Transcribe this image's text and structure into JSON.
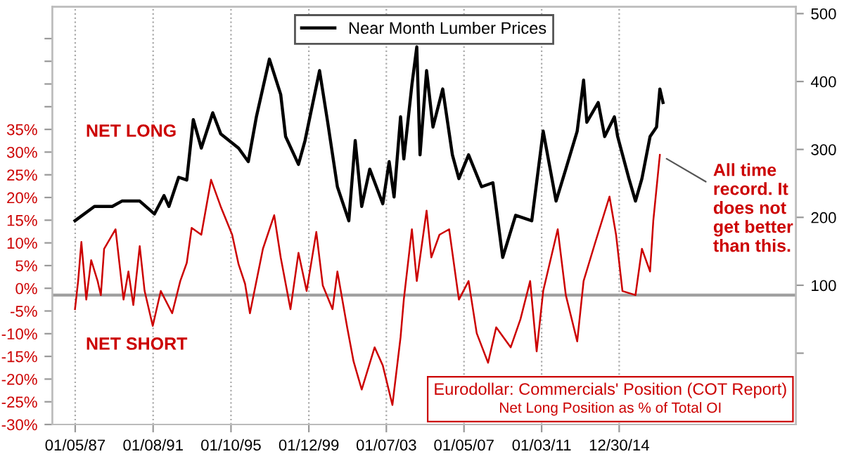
{
  "chart_data": {
    "type": "line",
    "title": "Eurodollar: Commercials' Position (COT Report)",
    "subtitle": "Net Long Position as % of Total OI",
    "series": [
      {
        "name": "Near Month Lumber Prices",
        "color": "#000000",
        "axis": "y2",
        "x": [
          "1987-01",
          "1988-01",
          "1988-12",
          "1989-06",
          "1990-05",
          "1991-02",
          "1991-08",
          "1991-11",
          "1992-05",
          "1992-10",
          "1993-02",
          "1993-07",
          "1994-02",
          "1994-07",
          "1995-06",
          "1995-12",
          "1996-05",
          "1997-01",
          "1997-08",
          "1997-11",
          "1998-07",
          "1998-11",
          "1999-08",
          "2000-01",
          "2000-07",
          "2001-02",
          "2001-06",
          "2001-10",
          "2002-03",
          "2002-11",
          "2003-03",
          "2003-06",
          "2003-10",
          "2003-12",
          "2004-05",
          "2004-08",
          "2004-10",
          "2005-02",
          "2005-06",
          "2005-12",
          "2006-06",
          "2006-10",
          "2007-04",
          "2007-12",
          "2008-07",
          "2009-01",
          "2009-09",
          "2010-07",
          "2011-02",
          "2011-10",
          "2012-04",
          "2012-11",
          "2013-03",
          "2013-05",
          "2013-12",
          "2014-04",
          "2014-10",
          "2014-12",
          "2015-07",
          "2015-11",
          "2016-03",
          "2016-08",
          "2016-12",
          "2017-02",
          "2017-04"
        ],
        "values": [
          195,
          216,
          216,
          224,
          224,
          205,
          232,
          216,
          259,
          255,
          344,
          302,
          354,
          323,
          302,
          282,
          348,
          433,
          381,
          319,
          278,
          313,
          416,
          340,
          245,
          195,
          313,
          216,
          271,
          220,
          282,
          230,
          348,
          286,
          395,
          451,
          292,
          416,
          333,
          389,
          292,
          257,
          292,
          245,
          251,
          141,
          203,
          195,
          327,
          224,
          271,
          327,
          402,
          340,
          369,
          319,
          348,
          319,
          257,
          224,
          257,
          319,
          333,
          389,
          369
        ]
      },
      {
        "color": "#cc0000",
        "axis": "y",
        "x": [
          "1987-01",
          "1987-03",
          "1987-05",
          "1987-08",
          "1987-11",
          "1988-03",
          "1988-05",
          "1988-07",
          "1989-02",
          "1989-07",
          "1989-10",
          "1990-01",
          "1990-05",
          "1990-08",
          "1991-01",
          "1991-06",
          "1992-01",
          "1992-06",
          "1992-10",
          "1993-01",
          "1993-07",
          "1994-01",
          "1994-07",
          "1995-02",
          "1995-06",
          "1995-10",
          "1996-01",
          "1996-09",
          "1997-04",
          "1997-08",
          "1998-02",
          "1998-07",
          "1998-12",
          "1999-06",
          "1999-10",
          "2000-04",
          "2000-07",
          "2001-01",
          "2001-05",
          "2001-10",
          "2002-06",
          "2002-11",
          "2003-05",
          "2003-10",
          "2003-12",
          "2004-05",
          "2004-08",
          "2005-02",
          "2005-05",
          "2005-10",
          "2006-04",
          "2006-10",
          "2007-04",
          "2007-09",
          "2008-04",
          "2008-09",
          "2009-06",
          "2009-12",
          "2010-06",
          "2010-10",
          "2011-02",
          "2011-11",
          "2012-04",
          "2012-11",
          "2013-03",
          "2013-10",
          "2014-07",
          "2014-11",
          "2015-03",
          "2015-11",
          "2016-03",
          "2016-08",
          "2016-10",
          "2017-02"
        ],
        "values": [
          -4.6,
          1.6,
          10.2,
          -2.5,
          6.2,
          1.6,
          -1.5,
          8.7,
          13.0,
          -2.5,
          3.7,
          -3.7,
          9.3,
          -0.6,
          -8.3,
          -0.6,
          -5.5,
          1.6,
          5.6,
          13.3,
          11.8,
          23.9,
          18.0,
          11.8,
          5.3,
          1.0,
          -5.5,
          8.7,
          16.1,
          6.8,
          -4.6,
          7.8,
          -0.6,
          12.4,
          0.6,
          -4.6,
          3.7,
          -8.6,
          -16.1,
          -22.3,
          -13.0,
          -17.0,
          -25.7,
          -10.8,
          -2.5,
          13.0,
          1.6,
          17.1,
          6.8,
          11.8,
          13.0,
          -2.5,
          1.6,
          -9.9,
          -16.4,
          -8.6,
          -13.0,
          -6.8,
          1.6,
          -13.9,
          -0.6,
          13.0,
          -1.5,
          -11.7,
          1.6,
          9.9,
          20.2,
          11.8,
          -0.6,
          -1.5,
          8.7,
          3.7,
          14.9,
          29.4
        ]
      }
    ],
    "xlim": [
      "1985-11-01",
      "2024-02-01"
    ],
    "xticks": [
      {
        "value": "1987-01-05",
        "label": "01/05/87"
      },
      {
        "value": "1991-01-08",
        "label": "01/08/91"
      },
      {
        "value": "1995-01-10",
        "label": "01/10/95"
      },
      {
        "value": "1999-01-12",
        "label": "01/12/99"
      },
      {
        "value": "2003-01-07",
        "label": "01/07/03"
      },
      {
        "value": "2007-01-05",
        "label": "01/05/07"
      },
      {
        "value": "2011-01-03",
        "label": "01/03/11"
      },
      {
        "value": "2014-12-30",
        "label": "12/30/14"
      }
    ],
    "ylim": [
      -30,
      62
    ],
    "yticks": [
      {
        "value": -30,
        "label": "-30%"
      },
      {
        "value": -25,
        "label": "-25%"
      },
      {
        "value": -20,
        "label": "-20%"
      },
      {
        "value": -15,
        "label": "-15%"
      },
      {
        "value": -10,
        "label": "-10%"
      },
      {
        "value": -5,
        "label": "-5%"
      },
      {
        "value": 0,
        "label": "0%"
      },
      {
        "value": 5,
        "label": "5%"
      },
      {
        "value": 10,
        "label": "10%"
      },
      {
        "value": 15,
        "label": "15%"
      },
      {
        "value": 20,
        "label": "20%"
      },
      {
        "value": 25,
        "label": "25%"
      },
      {
        "value": 30,
        "label": "30%"
      },
      {
        "value": 35,
        "label": "35%"
      },
      {
        "value": 40,
        "label": null
      },
      {
        "value": 45,
        "label": null
      },
      {
        "value": 50,
        "label": null
      },
      {
        "value": 55,
        "label": null
      }
    ],
    "y2lim": [
      -105,
      510
    ],
    "y2ticks": [
      {
        "value": 0,
        "label": null
      },
      100,
      200,
      300,
      400,
      500
    ],
    "ref_lines": [
      {
        "axis": "y",
        "value": -1.5,
        "color": "#a0a0a0"
      }
    ],
    "annotations": [
      "NET LONG",
      "NET SHORT",
      {
        "text": "All time\nrecord. It\ndoes not\nget better\nthan this.",
        "x": "2017-02",
        "y": 29.4
      }
    ],
    "grid": "x",
    "legend": "top",
    "line_style": "solid",
    "marker": "none"
  }
}
